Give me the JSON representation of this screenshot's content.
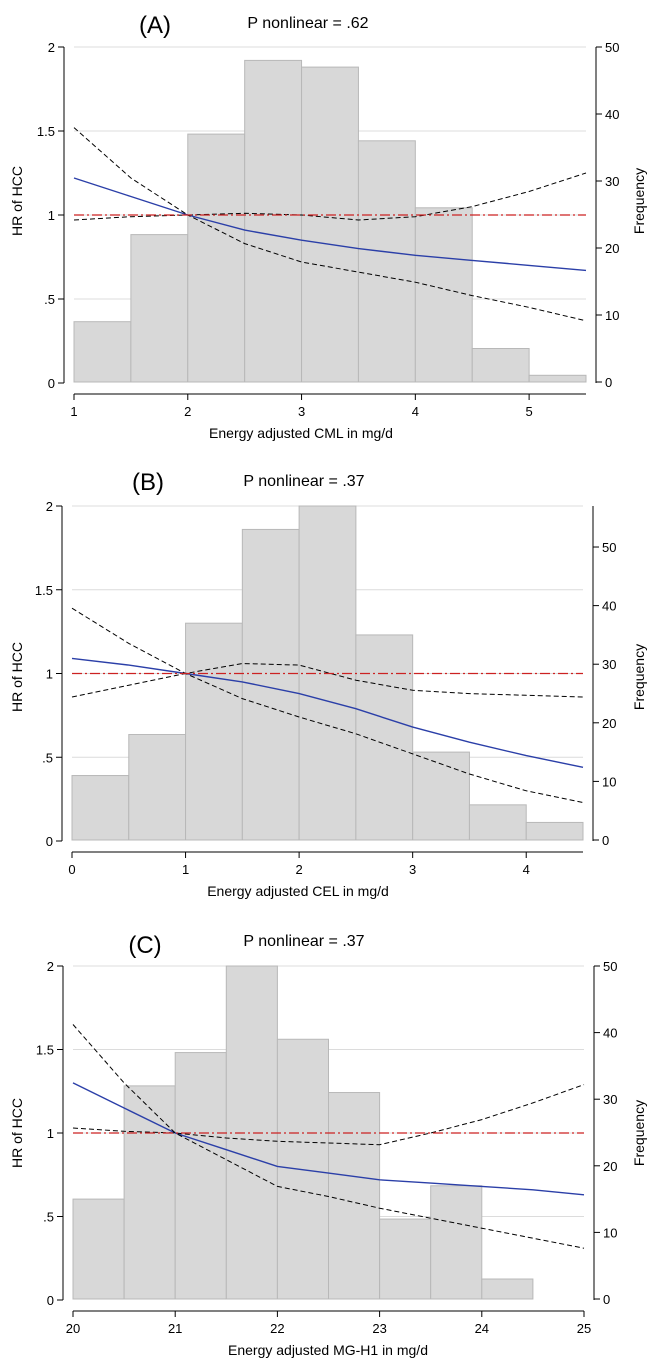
{
  "chart_data": [
    {
      "type": "bar",
      "panel_label": "(A)",
      "title": "P nonlinear = .62",
      "xlabel": "Energy adjusted CML in mg/d",
      "ylabel_left": "HR of HCC",
      "ylabel_right": "Frequency",
      "xlim": [
        1,
        5.5
      ],
      "x_ticks": [
        "1",
        "2",
        "3",
        "4",
        "5"
      ],
      "y_left_ticks": [
        "0",
        ".5",
        "1",
        "1.5",
        "2"
      ],
      "y_left_range": [
        0,
        2
      ],
      "y_right_ticks": [
        "0",
        "10",
        "20",
        "30",
        "40",
        "50"
      ],
      "y_right_range": [
        0,
        50
      ],
      "grid": true,
      "histogram": {
        "bin_edges": [
          1,
          1.5,
          2,
          2.5,
          3,
          3.5,
          4,
          4.5,
          5,
          5.5
        ],
        "frequency": [
          9,
          22,
          37,
          48,
          47,
          36,
          26,
          5,
          1
        ]
      },
      "series": [
        {
          "role": "hr",
          "x": [
            1,
            1.5,
            2,
            2.5,
            3,
            3.5,
            4,
            4.5,
            5,
            5.5
          ],
          "y": [
            1.22,
            1.11,
            1.0,
            0.91,
            0.85,
            0.8,
            0.76,
            0.73,
            0.7,
            0.67
          ]
        },
        {
          "role": "ci_upper",
          "x": [
            1,
            1.5,
            2,
            2.5,
            3,
            3.5,
            4,
            4.5,
            5,
            5.5
          ],
          "y": [
            1.52,
            1.22,
            1.0,
            1.01,
            1.0,
            0.97,
            0.99,
            1.05,
            1.14,
            1.25
          ]
        },
        {
          "role": "ci_lower",
          "x": [
            1,
            1.5,
            2,
            2.5,
            3,
            3.5,
            4,
            4.5,
            5,
            5.5
          ],
          "y": [
            0.97,
            0.99,
            1.0,
            0.83,
            0.72,
            0.66,
            0.6,
            0.52,
            0.45,
            0.37
          ]
        },
        {
          "role": "reference",
          "x": [
            1,
            5.5
          ],
          "y": [
            1,
            1
          ]
        }
      ]
    },
    {
      "type": "bar",
      "panel_label": "(B)",
      "title": "P nonlinear = .37",
      "xlabel": "Energy adjusted CEL in mg/d",
      "ylabel_left": "HR of HCC",
      "ylabel_right": "Frequency",
      "xlim": [
        0,
        4.5
      ],
      "x_ticks": [
        "0",
        "1",
        "2",
        "3",
        "4"
      ],
      "y_left_ticks": [
        "0",
        ".5",
        "1",
        "1.5",
        "2"
      ],
      "y_left_range": [
        0,
        2
      ],
      "y_right_ticks": [
        "0",
        "10",
        "20",
        "30",
        "40",
        "50"
      ],
      "y_right_range": [
        0,
        57
      ],
      "grid": true,
      "histogram": {
        "bin_edges": [
          0,
          0.5,
          1,
          1.5,
          2,
          2.5,
          3,
          3.5,
          4,
          4.5
        ],
        "frequency": [
          11,
          18,
          37,
          53,
          57,
          35,
          15,
          6,
          3
        ]
      },
      "series": [
        {
          "role": "hr",
          "x": [
            0,
            0.5,
            1,
            1.5,
            2,
            2.5,
            3,
            3.5,
            4,
            4.5
          ],
          "y": [
            1.09,
            1.05,
            1.0,
            0.95,
            0.88,
            0.79,
            0.68,
            0.59,
            0.51,
            0.44
          ]
        },
        {
          "role": "ci_upper",
          "x": [
            0,
            0.5,
            1,
            1.5,
            2,
            2.5,
            3,
            3.5,
            4,
            4.5
          ],
          "y": [
            1.39,
            1.18,
            1.0,
            0.85,
            0.74,
            0.64,
            0.52,
            0.4,
            0.3,
            0.23
          ]
        },
        {
          "role": "ci_lower",
          "x": [
            0,
            0.5,
            1,
            1.5,
            2,
            2.5,
            3,
            3.5,
            4,
            4.5
          ],
          "y": [
            0.86,
            0.93,
            1.0,
            1.06,
            1.05,
            0.96,
            0.9,
            0.88,
            0.87,
            0.86
          ]
        },
        {
          "role": "reference",
          "x": [
            0,
            4.5
          ],
          "y": [
            1,
            1
          ]
        }
      ]
    },
    {
      "type": "bar",
      "panel_label": "(C)",
      "title": "P nonlinear = .37",
      "xlabel": "Energy adjusted MG-H1 in mg/d",
      "ylabel_left": "HR of HCC",
      "ylabel_right": "Frequency",
      "xlim": [
        20,
        25
      ],
      "x_ticks": [
        "20",
        "21",
        "22",
        "23",
        "24",
        "25"
      ],
      "y_left_ticks": [
        "0",
        ".5",
        "1",
        "1.5",
        "2"
      ],
      "y_left_range": [
        0,
        2
      ],
      "y_right_ticks": [
        "0",
        "10",
        "20",
        "30",
        "40",
        "50"
      ],
      "y_right_range": [
        0,
        50
      ],
      "grid": true,
      "histogram": {
        "bin_edges": [
          20,
          20.5,
          21,
          21.5,
          22,
          22.5,
          23,
          23.5,
          24,
          24.5
        ],
        "frequency": [
          15,
          32,
          37,
          50,
          39,
          31,
          12,
          17,
          3
        ]
      },
      "series": [
        {
          "role": "hr",
          "x": [
            20,
            20.5,
            21,
            21.5,
            22,
            22.5,
            23,
            23.5,
            24,
            24.5,
            25
          ],
          "y": [
            1.3,
            1.15,
            1.0,
            0.9,
            0.8,
            0.76,
            0.72,
            0.7,
            0.68,
            0.66,
            0.63
          ]
        },
        {
          "role": "ci_upper",
          "x": [
            20,
            20.5,
            21,
            21.5,
            22,
            22.5,
            23,
            23.5,
            24,
            24.5,
            25
          ],
          "y": [
            1.65,
            1.3,
            1.0,
            0.84,
            0.68,
            0.62,
            0.55,
            0.49,
            0.43,
            0.37,
            0.31
          ]
        },
        {
          "role": "ci_lower",
          "x": [
            20,
            20.5,
            21,
            21.5,
            22,
            22.5,
            23,
            23.5,
            24,
            24.5,
            25
          ],
          "y": [
            1.03,
            1.01,
            1.0,
            0.97,
            0.95,
            0.94,
            0.93,
            1.0,
            1.08,
            1.18,
            1.29
          ]
        },
        {
          "role": "reference",
          "x": [
            20,
            25
          ],
          "y": [
            1,
            1
          ]
        }
      ]
    }
  ],
  "colors": {
    "bar_fill": "#d8d8d8",
    "bar_stroke": "#b8b8b8",
    "hr_line": "#2b3fa8",
    "ci_line": "#000000",
    "reference_dash": "#cc2222",
    "reference_dot": "#2b3fa8",
    "gridline": "#dcdcdc"
  }
}
